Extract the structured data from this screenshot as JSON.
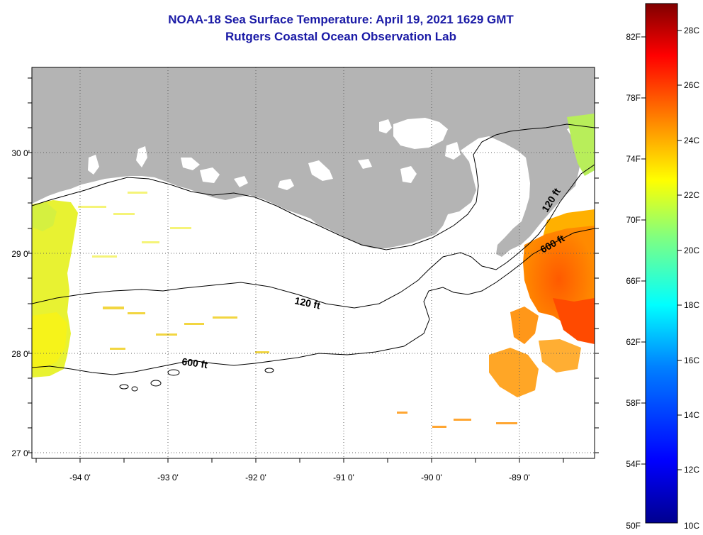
{
  "header": {
    "title": "NOAA-18 Sea Surface Temperature:  April 19, 2021 1629 GMT",
    "subtitle": "Rutgers Coastal Ocean Observation Lab"
  },
  "map": {
    "lat_labels": [
      "30 0'",
      "29 0'",
      "28 0'",
      "27 0'"
    ],
    "lon_labels": [
      "-94 0'",
      "-93 0'",
      "-92 0'",
      "-91 0'",
      "-90 0'",
      "-89 0'"
    ],
    "land_color": "#b4b4b4",
    "contours": [
      {
        "label": "120 ft",
        "depth_ft": 120
      },
      {
        "label": "600 ft",
        "depth_ft": 600
      },
      {
        "label": "120 ft",
        "depth_ft": 120
      },
      {
        "label": "600 ft",
        "depth_ft": 600
      }
    ]
  },
  "colorbar": {
    "fahrenheit_labels": [
      "82F",
      "78F",
      "74F",
      "70F",
      "66F",
      "62F",
      "58F",
      "54F",
      "50F"
    ],
    "celsius_labels": [
      "28C",
      "26C",
      "24C",
      "22C",
      "20C",
      "18C",
      "16C",
      "14C",
      "12C",
      "10C"
    ],
    "range_celsius": [
      10,
      29.5
    ],
    "gradient_colors": [
      "#00008f",
      "#0000ff",
      "#0080ff",
      "#00ffff",
      "#80ff80",
      "#ffff00",
      "#ff8000",
      "#ff0000",
      "#800000"
    ]
  }
}
